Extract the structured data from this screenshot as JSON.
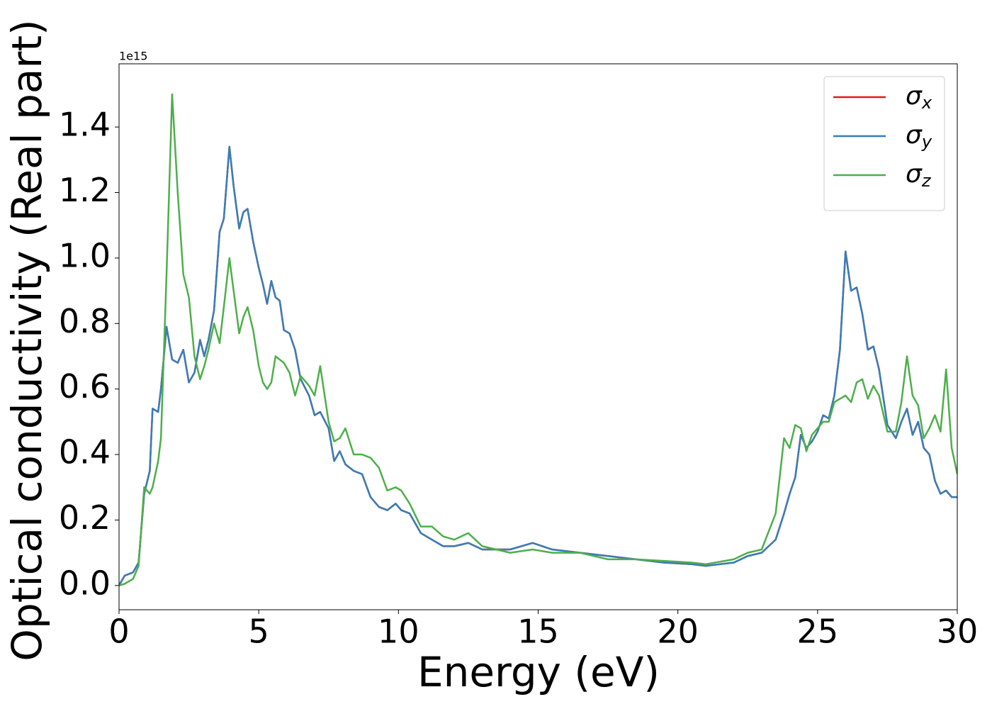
{
  "chart_data": {
    "type": "line",
    "x_label": "Energy (eV)",
    "y_label": "Optical conductivity (Real part)",
    "offset_label": "1e15",
    "xlim": [
      0,
      30
    ],
    "xticks": [
      0,
      5,
      10,
      15,
      20,
      25,
      30
    ],
    "ylim": [
      -0.074,
      1.593
    ],
    "yticks": [
      {
        "value": 0,
        "label": "0.0"
      },
      0.2,
      0.4,
      0.6,
      0.8,
      {
        "value": 1,
        "label": "1.0"
      },
      1.2,
      1.4
    ],
    "legend": "upper right",
    "x": [
      0,
      0.2,
      0.5,
      0.7,
      0.9,
      1.1,
      1.2,
      1.4,
      1.5,
      1.7,
      1.9,
      2.1,
      2.3,
      2.5,
      2.7,
      2.9,
      3.05,
      3.2,
      3.4,
      3.6,
      3.75,
      3.95,
      4.1,
      4.3,
      4.45,
      4.6,
      4.8,
      5.0,
      5.15,
      5.3,
      5.45,
      5.6,
      5.75,
      5.9,
      6.1,
      6.3,
      6.5,
      6.8,
      7.0,
      7.2,
      7.5,
      7.7,
      7.9,
      8.1,
      8.4,
      8.7,
      9.0,
      9.3,
      9.6,
      9.9,
      10.1,
      10.4,
      10.8,
      11.2,
      11.6,
      12.0,
      12.5,
      13.0,
      14.0,
      14.8,
      15.5,
      16.5,
      17.5,
      18.5,
      19.5,
      20.5,
      21.0,
      22.0,
      22.5,
      23.0,
      23.5,
      23.8,
      24.0,
      24.2,
      24.4,
      24.6,
      24.8,
      25.0,
      25.2,
      25.4,
      25.6,
      25.8,
      26.0,
      26.2,
      26.4,
      26.6,
      26.8,
      27.0,
      27.2,
      27.5,
      27.8,
      28.0,
      28.2,
      28.4,
      28.6,
      28.8,
      29.0,
      29.2,
      29.4,
      29.6,
      29.8,
      30.0
    ],
    "series": [
      {
        "name": "σx",
        "color": "#e41a1c",
        "values": [
          0,
          0.03,
          0.04,
          0.07,
          0.28,
          0.35,
          0.54,
          0.53,
          0.6,
          0.79,
          0.69,
          0.68,
          0.72,
          0.62,
          0.65,
          0.75,
          0.7,
          0.75,
          0.84,
          1.08,
          1.12,
          1.34,
          1.22,
          1.09,
          1.14,
          1.15,
          1.05,
          0.97,
          0.92,
          0.86,
          0.93,
          0.88,
          0.87,
          0.78,
          0.77,
          0.72,
          0.63,
          0.58,
          0.52,
          0.53,
          0.48,
          0.38,
          0.41,
          0.37,
          0.35,
          0.34,
          0.27,
          0.24,
          0.23,
          0.25,
          0.23,
          0.22,
          0.16,
          0.14,
          0.12,
          0.12,
          0.13,
          0.11,
          0.11,
          0.13,
          0.11,
          0.1,
          0.09,
          0.08,
          0.07,
          0.065,
          0.06,
          0.07,
          0.09,
          0.1,
          0.14,
          0.22,
          0.28,
          0.33,
          0.46,
          0.42,
          0.44,
          0.47,
          0.52,
          0.51,
          0.58,
          0.72,
          1.02,
          0.9,
          0.91,
          0.83,
          0.72,
          0.73,
          0.66,
          0.49,
          0.45,
          0.5,
          0.54,
          0.46,
          0.5,
          0.42,
          0.4,
          0.32,
          0.28,
          0.29,
          0.27,
          0.27
        ]
      },
      {
        "name": "σy",
        "color": "#377eb8",
        "values": [
          0,
          0.03,
          0.04,
          0.07,
          0.28,
          0.35,
          0.54,
          0.53,
          0.6,
          0.79,
          0.69,
          0.68,
          0.72,
          0.62,
          0.65,
          0.75,
          0.7,
          0.75,
          0.84,
          1.08,
          1.12,
          1.34,
          1.22,
          1.09,
          1.14,
          1.15,
          1.05,
          0.97,
          0.92,
          0.86,
          0.93,
          0.88,
          0.87,
          0.78,
          0.77,
          0.72,
          0.63,
          0.58,
          0.52,
          0.53,
          0.48,
          0.38,
          0.41,
          0.37,
          0.35,
          0.34,
          0.27,
          0.24,
          0.23,
          0.25,
          0.23,
          0.22,
          0.16,
          0.14,
          0.12,
          0.12,
          0.13,
          0.11,
          0.11,
          0.13,
          0.11,
          0.1,
          0.09,
          0.08,
          0.07,
          0.065,
          0.06,
          0.07,
          0.09,
          0.1,
          0.14,
          0.22,
          0.28,
          0.33,
          0.46,
          0.42,
          0.44,
          0.47,
          0.52,
          0.51,
          0.58,
          0.72,
          1.02,
          0.9,
          0.91,
          0.83,
          0.72,
          0.73,
          0.66,
          0.49,
          0.45,
          0.5,
          0.54,
          0.46,
          0.5,
          0.42,
          0.4,
          0.32,
          0.28,
          0.29,
          0.27,
          0.27
        ]
      },
      {
        "name": "σz",
        "color": "#4daf4a",
        "values": [
          0,
          0.005,
          0.02,
          0.06,
          0.3,
          0.28,
          0.3,
          0.38,
          0.45,
          0.95,
          1.5,
          1.2,
          0.95,
          0.88,
          0.7,
          0.63,
          0.67,
          0.72,
          0.8,
          0.74,
          0.85,
          1.0,
          0.9,
          0.77,
          0.82,
          0.85,
          0.78,
          0.67,
          0.62,
          0.6,
          0.62,
          0.7,
          0.69,
          0.68,
          0.65,
          0.58,
          0.64,
          0.61,
          0.58,
          0.67,
          0.5,
          0.44,
          0.45,
          0.48,
          0.4,
          0.4,
          0.39,
          0.36,
          0.29,
          0.3,
          0.29,
          0.25,
          0.18,
          0.18,
          0.15,
          0.14,
          0.16,
          0.12,
          0.1,
          0.11,
          0.1,
          0.1,
          0.08,
          0.08,
          0.075,
          0.07,
          0.065,
          0.08,
          0.1,
          0.11,
          0.22,
          0.45,
          0.42,
          0.49,
          0.48,
          0.41,
          0.46,
          0.48,
          0.5,
          0.5,
          0.56,
          0.57,
          0.58,
          0.56,
          0.62,
          0.63,
          0.57,
          0.61,
          0.58,
          0.47,
          0.47,
          0.56,
          0.7,
          0.58,
          0.55,
          0.45,
          0.48,
          0.52,
          0.47,
          0.66,
          0.42,
          0.34
        ]
      }
    ]
  }
}
